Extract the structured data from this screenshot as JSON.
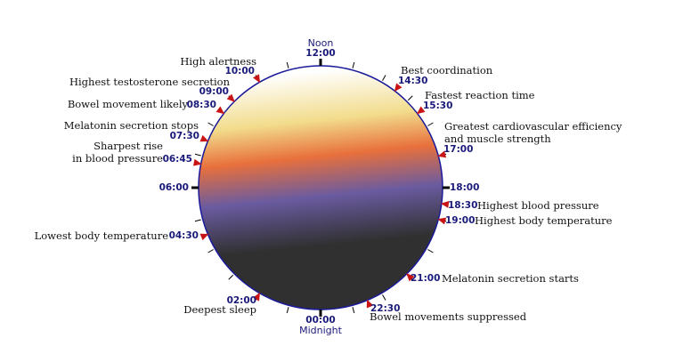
{
  "dial": {
    "top_caption": "Noon",
    "top_time": "12:00",
    "bottom_time": "00:00",
    "bottom_caption": "Midnight",
    "left_time": "06:00",
    "right_time": "18:00",
    "colors": {
      "ring": "#1a1a9a",
      "marker": "#c81414",
      "day_light": "#ffffff",
      "day_yellow": "#f2dc8c",
      "dusk_orange": "#e8703c",
      "dusk_purple": "#6a5ba0",
      "night": "#303030"
    }
  },
  "events": [
    {
      "time": "10:00",
      "label": "High alertness"
    },
    {
      "time": "09:00",
      "label": "Highest testosterone secretion"
    },
    {
      "time": "08:30",
      "label": "Bowel movement likely"
    },
    {
      "time": "07:30",
      "label": "Melatonin secretion stops"
    },
    {
      "time": "06:45",
      "label": "Sharpest rise",
      "label2": "in blood pressure"
    },
    {
      "time": "04:30",
      "label": "Lowest body temperature"
    },
    {
      "time": "02:00",
      "label": "Deepest sleep"
    },
    {
      "time": "14:30",
      "label": "Best coordination"
    },
    {
      "time": "15:30",
      "label": "Fastest reaction time"
    },
    {
      "time": "17:00",
      "label": "Greatest cardiovascular efficiency",
      "label2": "and muscle strength"
    },
    {
      "time": "18:30",
      "label": "Highest blood pressure"
    },
    {
      "time": "19:00",
      "label": "Highest body temperature"
    },
    {
      "time": "21:00",
      "label": "Melatonin secretion starts"
    },
    {
      "time": "22:30",
      "label": "Bowel movements suppressed"
    }
  ]
}
